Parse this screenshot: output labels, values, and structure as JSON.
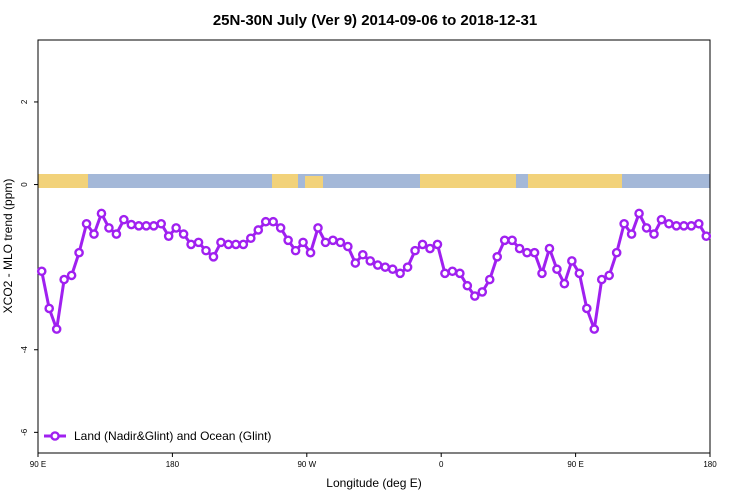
{
  "chart_data": {
    "type": "line",
    "title": "25N-30N July (Ver 9)   2014-09-06 to 2018-12-31",
    "x_label": "Longitude (deg E)",
    "y_label": "XCO2 - MLO trend (ppm)",
    "xlim": [
      90,
      540
    ],
    "ylim": [
      -6.5,
      3.5
    ],
    "xticks": [
      {
        "value": 90,
        "label": "90 E"
      },
      {
        "value": 180,
        "label": "180"
      },
      {
        "value": 270,
        "label": "90 W"
      },
      {
        "value": 360,
        "label": "0"
      },
      {
        "value": 450,
        "label": "90 E"
      },
      {
        "value": 540,
        "label": "180"
      }
    ],
    "yticks": [
      -6,
      -4,
      0,
      2
    ],
    "legend_position": "bottom-left",
    "x": [
      92.5,
      97.5,
      102.5,
      107.5,
      112.5,
      117.5,
      122.5,
      127.5,
      132.5,
      137.5,
      142.5,
      147.5,
      152.5,
      157.5,
      162.5,
      167.5,
      172.5,
      177.5,
      182.5,
      187.5,
      192.5,
      197.5,
      202.5,
      207.5,
      212.5,
      217.5,
      222.5,
      227.5,
      232.5,
      237.5,
      242.5,
      247.5,
      252.5,
      257.5,
      262.5,
      267.5,
      272.5,
      277.5,
      282.5,
      287.5,
      292.5,
      297.5,
      302.5,
      307.5,
      312.5,
      317.5,
      322.5,
      327.5,
      332.5,
      337.5,
      342.5,
      347.5,
      352.5,
      357.5,
      362.5,
      367.5,
      372.5,
      377.5,
      382.5,
      387.5,
      392.5,
      397.5,
      402.5,
      407.5,
      412.5,
      417.5,
      422.5,
      427.5,
      432.5,
      437.5,
      442.5,
      447.5,
      452.5,
      457.5,
      462.5,
      467.5,
      472.5,
      477.5,
      482.5,
      487.5,
      492.5,
      497.5,
      502.5,
      507.5,
      512.5,
      517.5,
      522.5,
      527.5,
      532.5,
      537.5
    ],
    "series": [
      {
        "name": "Land (Nadir&Glint) and Ocean (Glint)",
        "color": "#a020f0",
        "values": [
          -2.1,
          -3.0,
          -3.5,
          -2.3,
          -2.2,
          -1.65,
          -0.95,
          -1.2,
          -0.7,
          -1.05,
          -1.2,
          -0.85,
          -0.97,
          -1.0,
          -1.0,
          -1.0,
          -0.95,
          -1.25,
          -1.05,
          -1.2,
          -1.45,
          -1.4,
          -1.6,
          -1.75,
          -1.4,
          -1.45,
          -1.45,
          -1.45,
          -1.3,
          -1.1,
          -0.9,
          -0.9,
          -1.05,
          -1.35,
          -1.6,
          -1.4,
          -1.65,
          -1.05,
          -1.4,
          -1.35,
          -1.4,
          -1.5,
          -1.9,
          -1.7,
          -1.85,
          -1.95,
          -2.0,
          -2.05,
          -2.15,
          -2.0,
          -1.6,
          -1.45,
          -1.55,
          -1.45,
          -2.15,
          -2.1,
          -2.15,
          -2.45,
          -2.7,
          -2.6,
          -2.3,
          -1.75,
          -1.35,
          -1.35,
          -1.55,
          -1.65,
          -1.65,
          -2.15,
          -1.55,
          -2.05,
          -2.4,
          -1.85,
          -2.15,
          -3.0,
          -3.5,
          -2.3,
          -2.2,
          -1.65,
          -0.95,
          -1.2,
          -0.7,
          -1.05,
          -1.2,
          -0.85,
          -0.95,
          -1.0,
          -1.0,
          -1.0,
          -0.95,
          -1.25
        ]
      }
    ]
  }
}
